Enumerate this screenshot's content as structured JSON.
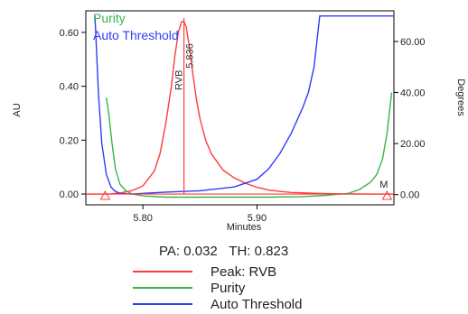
{
  "chart_data": {
    "type": "line",
    "title": "",
    "xlabel": "Minutes",
    "ylabel_left": "AU",
    "ylabel_right": "Degrees",
    "xlim": [
      5.75,
      6.02
    ],
    "ylim_left": [
      -0.04,
      0.68
    ],
    "ylim_right": [
      -4,
      72
    ],
    "x_ticks": [
      {
        "value": 5.8,
        "label": "5.80"
      },
      {
        "value": 5.9,
        "label": "5.90"
      }
    ],
    "y_left_ticks": [
      {
        "value": 0.0,
        "label": "0.00"
      },
      {
        "value": 0.2,
        "label": "0.20"
      },
      {
        "value": 0.4,
        "label": "0.40"
      },
      {
        "value": 0.6,
        "label": "0.60"
      }
    ],
    "y_right_ticks": [
      {
        "value": 0,
        "label": "0.00"
      },
      {
        "value": 20,
        "label": "20.00"
      },
      {
        "value": 40,
        "label": "40.00"
      },
      {
        "value": 60,
        "label": "60.00"
      }
    ],
    "series": [
      {
        "name": "Peak: RVB",
        "color": "#ff3b3b",
        "axis": "left",
        "x": [
          5.75,
          5.76,
          5.77,
          5.78,
          5.79,
          5.8,
          5.81,
          5.815,
          5.82,
          5.825,
          5.828,
          5.831,
          5.834,
          5.836,
          5.838,
          5.841,
          5.844,
          5.847,
          5.85,
          5.855,
          5.86,
          5.87,
          5.88,
          5.89,
          5.9,
          5.91,
          5.92,
          5.93,
          5.95,
          5.97,
          6.0,
          6.02
        ],
        "y": [
          0.0,
          0.0,
          0.0,
          0.004,
          0.012,
          0.03,
          0.085,
          0.15,
          0.26,
          0.4,
          0.51,
          0.6,
          0.64,
          0.64,
          0.62,
          0.54,
          0.44,
          0.35,
          0.28,
          0.2,
          0.15,
          0.09,
          0.06,
          0.04,
          0.025,
          0.015,
          0.01,
          0.006,
          0.003,
          0.001,
          0.0,
          0.0
        ]
      },
      {
        "name": "Purity",
        "color": "#39b54a",
        "axis": "right",
        "x": [
          5.768,
          5.77,
          5.773,
          5.776,
          5.78,
          5.785,
          5.79,
          5.8,
          5.82,
          5.85,
          5.88,
          5.91,
          5.94,
          5.96,
          5.98,
          5.99,
          6.0,
          6.005,
          6.01,
          6.014,
          6.018
        ],
        "y": [
          38,
          32,
          20,
          10,
          4,
          1.5,
          0.3,
          -0.5,
          -1,
          -1,
          -1,
          -1,
          -0.8,
          -0.3,
          0.5,
          2,
          5,
          8,
          14,
          24,
          40
        ]
      },
      {
        "name": "Auto Threshold",
        "color": "#2f3df7",
        "axis": "right",
        "x": [
          5.758,
          5.759,
          5.761,
          5.764,
          5.768,
          5.772,
          5.775,
          5.78,
          5.79,
          5.8,
          5.82,
          5.85,
          5.88,
          5.9,
          5.91,
          5.92,
          5.93,
          5.94,
          5.945,
          5.95,
          5.955,
          5.96,
          5.98,
          6.0,
          6.02
        ],
        "y": [
          70,
          60,
          40,
          20,
          8,
          3,
          1.5,
          0.5,
          0.2,
          0.5,
          1,
          1.5,
          3,
          6,
          10,
          16,
          24,
          34,
          40,
          50,
          70,
          70,
          70,
          70,
          70
        ]
      }
    ],
    "peak_label": {
      "x": 5.836,
      "text": "RVB",
      "time_text": "5.836"
    },
    "top_legend": [
      {
        "text": "Purity",
        "color": "#39b54a"
      },
      {
        "text": "Auto Threshold",
        "color": "#2f3df7"
      }
    ],
    "markers": [
      {
        "x": 5.767,
        "label": ""
      },
      {
        "x": 6.014,
        "label": "M"
      }
    ],
    "stats": {
      "pa": "PA: 0.032",
      "th": "TH: 0.823"
    },
    "legend": [
      {
        "label": "Peak: RVB",
        "color": "#ff3b3b"
      },
      {
        "label": "Purity",
        "color": "#39b54a"
      },
      {
        "label": "Auto Threshold",
        "color": "#2f3df7"
      }
    ]
  }
}
